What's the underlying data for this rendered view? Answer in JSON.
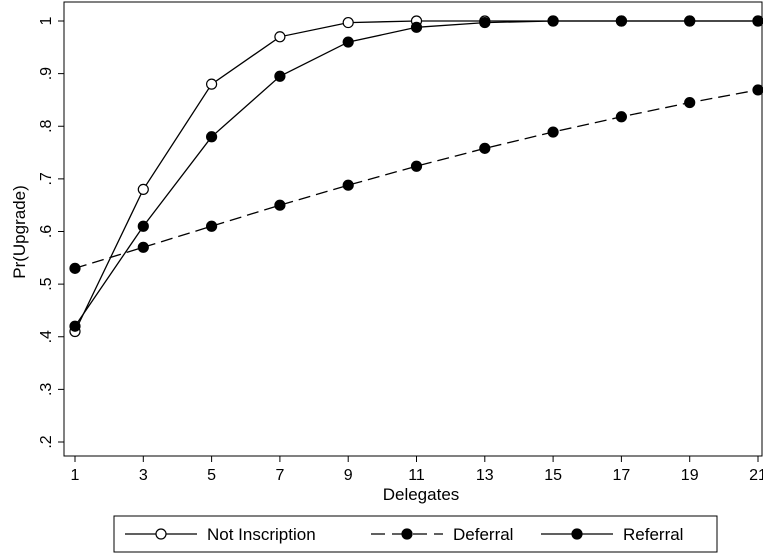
{
  "chart_data": {
    "type": "line",
    "title": "",
    "xlabel": "Delegates",
    "ylabel": "Pr(Upgrade)",
    "x": [
      1,
      3,
      5,
      7,
      9,
      11,
      13,
      15,
      17,
      19,
      21
    ],
    "x_ticks": [
      "1",
      "3",
      "5",
      "7",
      "9",
      "11",
      "13",
      "15",
      "17",
      "19",
      "21"
    ],
    "y_ticks": [
      {
        "value": 0.2,
        "label": ".2"
      },
      {
        "value": 0.3,
        "label": ".3"
      },
      {
        "value": 0.4,
        "label": ".4"
      },
      {
        "value": 0.5,
        "label": ".5"
      },
      {
        "value": 0.6,
        "label": ".6"
      },
      {
        "value": 0.7,
        "label": ".7"
      },
      {
        "value": 0.8,
        "label": ".8"
      },
      {
        "value": 0.9,
        "label": ".9"
      },
      {
        "value": 1.0,
        "label": "1"
      }
    ],
    "xlim": [
      1,
      21
    ],
    "ylim": [
      0.2,
      1.0
    ],
    "grid": false,
    "legend_position": "bottom",
    "series": [
      {
        "name": "Not Inscription",
        "marker": "hollow-circle",
        "line_style": "solid",
        "color": "#000000",
        "values": [
          0.41,
          0.68,
          0.88,
          0.97,
          0.997,
          1.0,
          1.0,
          1.0,
          1.0,
          1.0,
          1.0
        ]
      },
      {
        "name": "Deferral",
        "marker": "filled-circle",
        "line_style": "dashed",
        "color": "#000000",
        "values": [
          0.53,
          0.57,
          0.61,
          0.65,
          0.688,
          0.724,
          0.758,
          0.789,
          0.818,
          0.845,
          0.869
        ]
      },
      {
        "name": "Referral",
        "marker": "filled-circle",
        "line_style": "solid",
        "color": "#000000",
        "values": [
          0.42,
          0.61,
          0.78,
          0.895,
          0.96,
          0.988,
          0.997,
          1.0,
          1.0,
          1.0,
          1.0
        ]
      }
    ]
  }
}
